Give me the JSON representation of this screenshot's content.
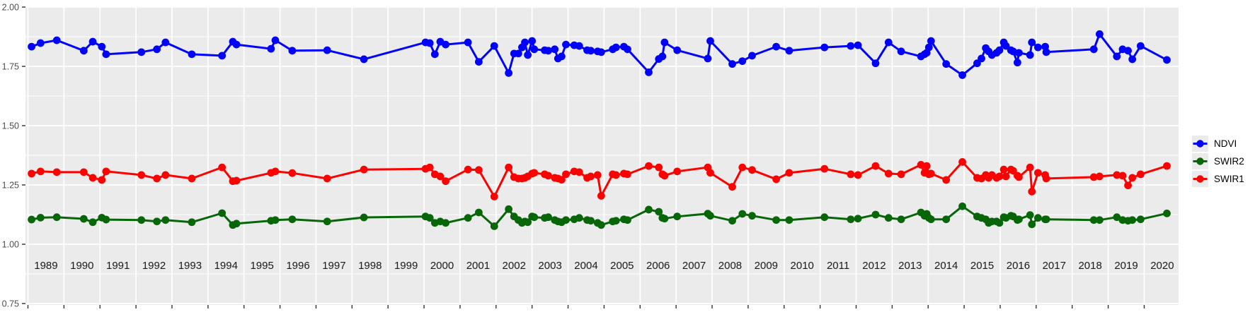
{
  "page": {
    "background": "#ffffff"
  },
  "chart_data": {
    "type": "line",
    "title": "",
    "xlabel": "",
    "ylabel": "",
    "grid": "on",
    "panel": {
      "background": "#ebebeb",
      "gridline_color": "#ffffff"
    },
    "legend": {
      "position": "right",
      "entries": [
        "NDVI",
        "SWIR2",
        "SWIR1"
      ]
    },
    "x_axis": {
      "range": [
        1988.9,
        2021.0
      ],
      "tick_labels": [
        "1989",
        "1990",
        "1991",
        "1992",
        "1993",
        "1994",
        "1995",
        "1996",
        "1997",
        "1998",
        "1999",
        "2000",
        "2001",
        "2002",
        "2003",
        "2004",
        "2005",
        "2006",
        "2007",
        "2008",
        "2009",
        "2010",
        "2011",
        "2012",
        "2013",
        "2014",
        "2015",
        "2016",
        "2017",
        "2018",
        "2019",
        "2020"
      ]
    },
    "y_axis": {
      "range": [
        0.75,
        2.0
      ],
      "tick_values": [
        2.0,
        1.75,
        1.5,
        1.25,
        1.0,
        0.75
      ],
      "tick_labels": [
        "2.00",
        "1.75",
        "1.50",
        "1.25",
        "1.00",
        "0.75"
      ],
      "minor_gridlines": [
        1.875,
        1.625,
        1.375,
        1.125,
        0.875
      ]
    },
    "x": [
      1989.1,
      1989.35,
      1989.8,
      1990.55,
      1990.8,
      1991.05,
      1991.17,
      1992.15,
      1992.58,
      1992.82,
      1993.55,
      1994.39,
      1994.69,
      1994.79,
      1995.75,
      1995.87,
      1996.34,
      1997.31,
      1998.33,
      2000.04,
      2000.16,
      2000.3,
      2000.45,
      2000.6,
      2001.22,
      2001.52,
      2001.95,
      2002.35,
      2002.5,
      2002.62,
      2002.72,
      2002.8,
      2002.88,
      2003.0,
      2003.06,
      2003.35,
      2003.45,
      2003.63,
      2003.72,
      2003.82,
      2003.94,
      2004.17,
      2004.31,
      2004.53,
      2004.63,
      2004.82,
      2004.92,
      2005.24,
      2005.33,
      2005.55,
      2005.65,
      2006.24,
      2006.52,
      2006.62,
      2006.68,
      2007.03,
      2007.88,
      2007.95,
      2008.56,
      2008.84,
      2009.11,
      2009.78,
      2010.14,
      2011.12,
      2011.85,
      2012.05,
      2012.54,
      2012.9,
      2013.25,
      2013.8,
      2013.9,
      2013.96,
      2014.02,
      2014.08,
      2014.5,
      2014.95,
      2015.36,
      2015.48,
      2015.6,
      2015.68,
      2015.77,
      2015.9,
      2015.98,
      2016.1,
      2016.16,
      2016.3,
      2016.36,
      2016.48,
      2016.52,
      2016.83,
      2016.88,
      2017.05,
      2017.25,
      2017.28,
      2018.6,
      2018.76,
      2019.24,
      2019.4,
      2019.55,
      2019.67,
      2019.9,
      2020.63
    ],
    "series": [
      {
        "name": "NDVI",
        "color": "#0000ff",
        "values": [
          1.833,
          1.848,
          1.86,
          1.816,
          1.854,
          1.833,
          1.801,
          1.81,
          1.822,
          1.851,
          1.801,
          1.795,
          1.854,
          1.842,
          1.824,
          1.86,
          1.816,
          1.818,
          1.78,
          1.851,
          1.848,
          1.801,
          1.854,
          1.842,
          1.851,
          1.769,
          1.836,
          1.722,
          1.804,
          1.804,
          1.83,
          1.851,
          1.798,
          1.857,
          1.822,
          1.818,
          1.816,
          1.822,
          1.783,
          1.792,
          1.842,
          1.839,
          1.836,
          1.818,
          1.816,
          1.813,
          1.81,
          1.822,
          1.83,
          1.833,
          1.822,
          1.725,
          1.781,
          1.792,
          1.851,
          1.818,
          1.783,
          1.857,
          1.76,
          1.772,
          1.795,
          1.833,
          1.816,
          1.83,
          1.836,
          1.839,
          1.763,
          1.851,
          1.813,
          1.792,
          1.801,
          1.807,
          1.83,
          1.857,
          1.76,
          1.713,
          1.763,
          1.783,
          1.827,
          1.813,
          1.798,
          1.807,
          1.818,
          1.851,
          1.836,
          1.818,
          1.813,
          1.766,
          1.807,
          1.798,
          1.851,
          1.83,
          1.833,
          1.81,
          1.822,
          1.886,
          1.792,
          1.822,
          1.816,
          1.78,
          1.836,
          1.777
        ]
      },
      {
        "name": "SWIR2",
        "color": "#076607",
        "values": [
          1.104,
          1.112,
          1.114,
          1.107,
          1.093,
          1.112,
          1.104,
          1.102,
          1.096,
          1.102,
          1.093,
          1.131,
          1.081,
          1.087,
          1.099,
          1.102,
          1.105,
          1.096,
          1.113,
          1.117,
          1.111,
          1.09,
          1.096,
          1.09,
          1.111,
          1.134,
          1.076,
          1.148,
          1.117,
          1.102,
          1.09,
          1.096,
          1.093,
          1.117,
          1.114,
          1.111,
          1.114,
          1.102,
          1.096,
          1.093,
          1.102,
          1.105,
          1.111,
          1.102,
          1.099,
          1.09,
          1.081,
          1.096,
          1.099,
          1.105,
          1.102,
          1.146,
          1.137,
          1.111,
          1.108,
          1.117,
          1.129,
          1.12,
          1.099,
          1.128,
          1.12,
          1.102,
          1.102,
          1.114,
          1.105,
          1.108,
          1.125,
          1.111,
          1.105,
          1.134,
          1.12,
          1.128,
          1.111,
          1.105,
          1.105,
          1.16,
          1.117,
          1.111,
          1.105,
          1.09,
          1.096,
          1.096,
          1.09,
          1.114,
          1.111,
          1.12,
          1.117,
          1.102,
          1.105,
          1.123,
          1.084,
          1.111,
          1.105,
          1.105,
          1.102,
          1.102,
          1.114,
          1.102,
          1.099,
          1.102,
          1.105,
          1.13
        ]
      },
      {
        "name": "SWIR1",
        "color": "#ff0000",
        "values": [
          1.298,
          1.307,
          1.304,
          1.304,
          1.28,
          1.271,
          1.307,
          1.292,
          1.277,
          1.292,
          1.277,
          1.324,
          1.266,
          1.268,
          1.301,
          1.307,
          1.3,
          1.277,
          1.315,
          1.318,
          1.324,
          1.295,
          1.286,
          1.266,
          1.315,
          1.313,
          1.201,
          1.324,
          1.283,
          1.277,
          1.277,
          1.28,
          1.286,
          1.298,
          1.301,
          1.295,
          1.289,
          1.28,
          1.277,
          1.272,
          1.295,
          1.307,
          1.304,
          1.28,
          1.286,
          1.292,
          1.204,
          1.295,
          1.292,
          1.298,
          1.295,
          1.33,
          1.324,
          1.295,
          1.289,
          1.307,
          1.324,
          1.301,
          1.242,
          1.324,
          1.313,
          1.274,
          1.301,
          1.318,
          1.295,
          1.292,
          1.33,
          1.298,
          1.295,
          1.335,
          1.301,
          1.33,
          1.295,
          1.298,
          1.271,
          1.347,
          1.28,
          1.277,
          1.292,
          1.28,
          1.292,
          1.28,
          1.286,
          1.315,
          1.286,
          1.315,
          1.31,
          1.289,
          1.283,
          1.324,
          1.222,
          1.301,
          1.292,
          1.277,
          1.283,
          1.286,
          1.292,
          1.289,
          1.248,
          1.28,
          1.295,
          1.33
        ]
      }
    ]
  }
}
